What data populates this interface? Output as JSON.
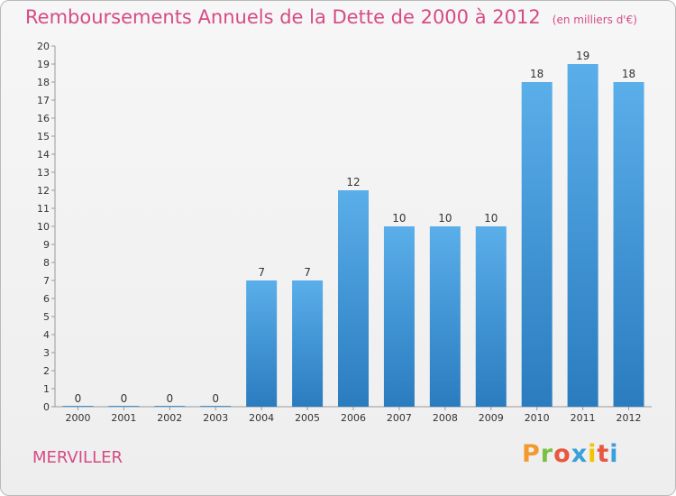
{
  "chart_data": {
    "type": "bar",
    "title": "Remboursements Annuels de la Dette de 2000 à 2012",
    "subtitle": "(en milliers d'€)",
    "xlabel": "",
    "ylabel": "",
    "categories": [
      "2000",
      "2001",
      "2002",
      "2003",
      "2004",
      "2005",
      "2006",
      "2007",
      "2008",
      "2009",
      "2010",
      "2011",
      "2012"
    ],
    "values": [
      0,
      0,
      0,
      0,
      7,
      7,
      12,
      10,
      10,
      10,
      18,
      19,
      18
    ],
    "data_labels": [
      "0",
      "0",
      "0",
      "0",
      "7",
      "7",
      "12",
      "10",
      "10",
      "10",
      "18",
      "19",
      "18"
    ],
    "ylim": [
      0,
      20
    ],
    "yticks": [
      0,
      1,
      2,
      3,
      4,
      5,
      6,
      7,
      8,
      9,
      10,
      11,
      12,
      13,
      14,
      15,
      16,
      17,
      18,
      19,
      20
    ],
    "grid": false,
    "legend": "none",
    "bar_color_top": "#5aaee9",
    "bar_color_bottom": "#2a7cbf"
  },
  "footer": {
    "commune": "MERVILLER",
    "logo": "Proxiti"
  },
  "colors": {
    "title": "#d64b85",
    "logo_letters": [
      "#f29a2e",
      "#7ac143",
      "#e8573f",
      "#3aa0d9",
      "#f2c500",
      "#e8573f",
      "#3aa0d9"
    ]
  }
}
